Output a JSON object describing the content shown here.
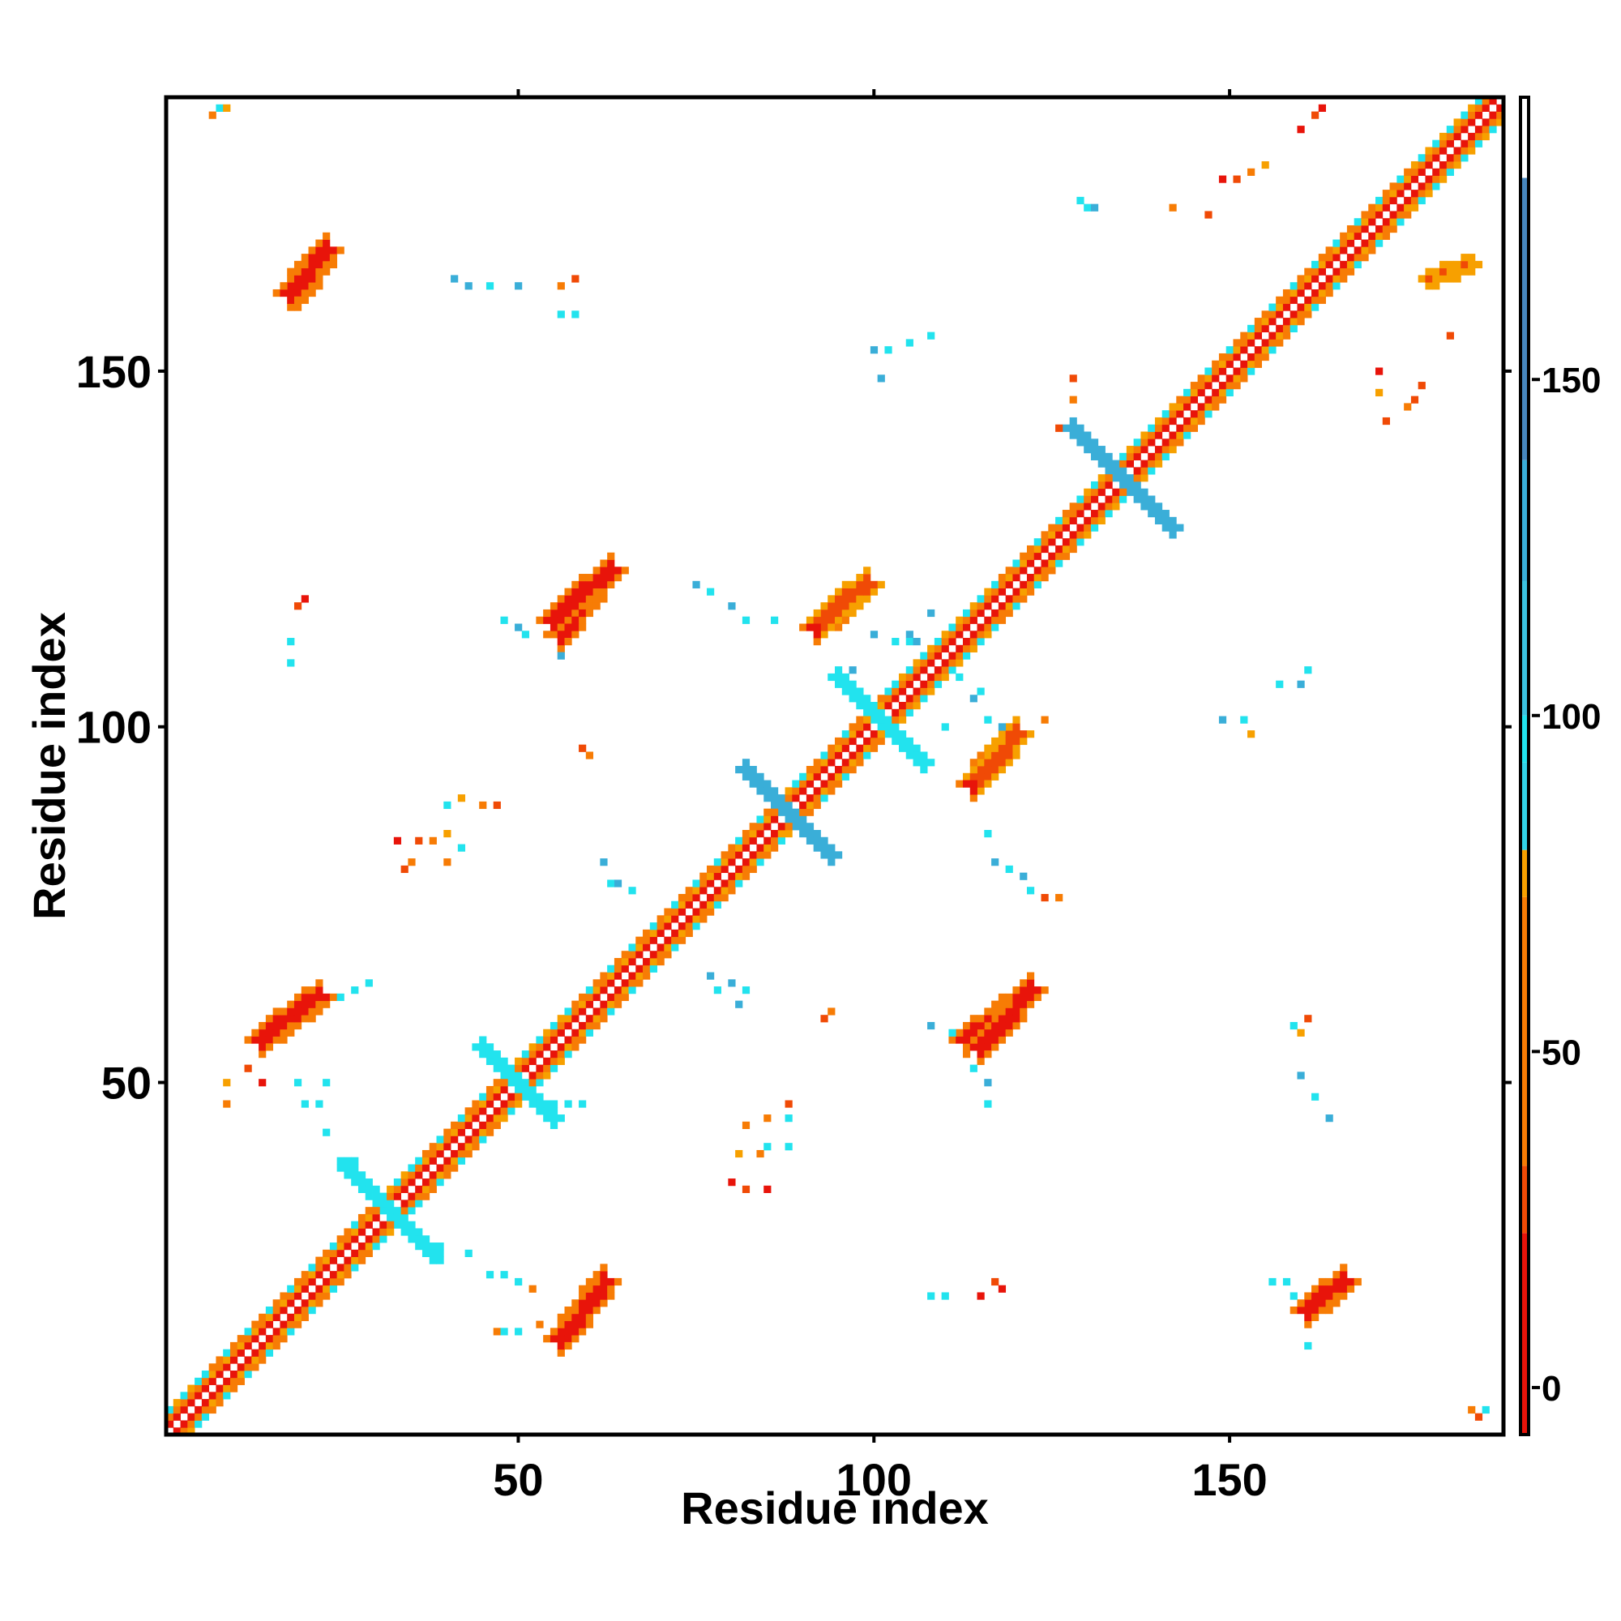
{
  "chart_data": {
    "type": "heatmap",
    "title": "",
    "xlabel": "Residue index",
    "ylabel": "Residue index",
    "xlim": [
      1,
      188
    ],
    "ylim": [
      1,
      188
    ],
    "x_ticks": [
      50,
      100,
      150
    ],
    "y_ticks": [
      50,
      100,
      150
    ],
    "grid": false,
    "legend": "colorbar-right",
    "colorbar": {
      "range": [
        -7,
        192
      ],
      "ticks": [
        0,
        50,
        100,
        150
      ],
      "bands": [
        {
          "from": -7,
          "to": 23,
          "color": "#e8140a"
        },
        {
          "from": 23,
          "to": 33,
          "color": "#f04a06"
        },
        {
          "from": 33,
          "to": 73,
          "color": "#f77c05"
        },
        {
          "from": 73,
          "to": 80,
          "color": "#f7a000"
        },
        {
          "from": 80,
          "to": 93,
          "color": "#33d3e8"
        },
        {
          "from": 93,
          "to": 100,
          "color": "#22e3ee"
        },
        {
          "from": 100,
          "to": 120,
          "color": "#3cc2e0"
        },
        {
          "from": 120,
          "to": 138,
          "color": "#3aaed8"
        },
        {
          "from": 138,
          "to": 180,
          "color": "#4786bd"
        },
        {
          "from": 180,
          "to": 192,
          "color": "#ffffff"
        }
      ]
    },
    "cell_colors": [
      "#e8140a",
      "#f04a06",
      "#f77c05",
      "#f7a000",
      "#22e3ee",
      "#3aaed8"
    ],
    "diagonal": {
      "from": 1,
      "to": 188,
      "bandwidth": 3
    },
    "helix_segments": [
      [
        6,
        30
      ],
      [
        36,
        47
      ],
      [
        57,
        74
      ],
      [
        74,
        87
      ],
      [
        90,
        102
      ],
      [
        118,
        128
      ],
      [
        143,
        175
      ]
    ],
    "crossings": [
      {
        "center": [
          32,
          32
        ],
        "half": 6,
        "color": 4
      },
      {
        "center": [
          50,
          50
        ],
        "half": 5,
        "color": 4
      },
      {
        "center": [
          88,
          88
        ],
        "half": 6,
        "color": 5
      },
      {
        "center": [
          101,
          101
        ],
        "half": 6,
        "color": 4
      },
      {
        "center": [
          135,
          135
        ],
        "half": 7,
        "color": 5
      }
    ],
    "strips": [
      {
        "from": [
          56,
          14
        ],
        "to": [
          62,
          22
        ],
        "width": 2,
        "color": 0
      },
      {
        "from": [
          14,
          56
        ],
        "to": [
          22,
          62
        ],
        "width": 2,
        "color": 0
      },
      {
        "from": [
          115,
          55
        ],
        "to": [
          122,
          63
        ],
        "width": 2,
        "color": 0
      },
      {
        "from": [
          55,
          115
        ],
        "to": [
          63,
          122
        ],
        "width": 2,
        "color": 0
      },
      {
        "from": [
          115,
          93
        ],
        "to": [
          120,
          99
        ],
        "width": 2,
        "color": 1
      },
      {
        "from": [
          93,
          115
        ],
        "to": [
          99,
          120
        ],
        "width": 2,
        "color": 1
      },
      {
        "from": [
          161,
          18
        ],
        "to": [
          166,
          22
        ],
        "width": 2,
        "color": 0
      },
      {
        "from": [
          18,
          161
        ],
        "to": [
          22,
          166
        ],
        "width": 2,
        "color": 0
      },
      {
        "from": [
          56,
          113
        ],
        "to": [
          61,
          120
        ],
        "width": 2,
        "color": 0
      },
      {
        "from": [
          113,
          56
        ],
        "to": [
          120,
          61
        ],
        "width": 2,
        "color": 0
      },
      {
        "from": [
          92,
          114
        ],
        "to": [
          97,
          118
        ],
        "width": 2,
        "color": 0
      },
      {
        "from": [
          114,
          92
        ],
        "to": [
          118,
          97
        ],
        "width": 2,
        "color": 0
      },
      {
        "from": [
          19,
          161
        ],
        "to": [
          23,
          167
        ],
        "width": 2,
        "color": 0
      },
      {
        "from": [
          178,
          163
        ],
        "to": [
          184,
          165
        ],
        "width": 1,
        "color": 1
      }
    ],
    "scatter_cells": [
      [
        7,
        186,
        2
      ],
      [
        8,
        187,
        4
      ],
      [
        9,
        187,
        3
      ],
      [
        185,
        3,
        1
      ],
      [
        186,
        4,
        4
      ],
      [
        184,
        4,
        2
      ],
      [
        149,
        177,
        0
      ],
      [
        151,
        177,
        1
      ],
      [
        153,
        178,
        2
      ],
      [
        155,
        179,
        3
      ],
      [
        160,
        184,
        0
      ],
      [
        162,
        186,
        1
      ],
      [
        163,
        187,
        0
      ],
      [
        129,
        174,
        4
      ],
      [
        130,
        173,
        4
      ],
      [
        131,
        173,
        5
      ],
      [
        142,
        173,
        2
      ],
      [
        147,
        172,
        1
      ],
      [
        41,
        163,
        5
      ],
      [
        43,
        162,
        5
      ],
      [
        46,
        162,
        4
      ],
      [
        50,
        162,
        5
      ],
      [
        56,
        162,
        2
      ],
      [
        58,
        163,
        1
      ],
      [
        56,
        158,
        4
      ],
      [
        58,
        158,
        4
      ],
      [
        100,
        153,
        5
      ],
      [
        102,
        153,
        4
      ],
      [
        105,
        154,
        4
      ],
      [
        108,
        155,
        4
      ],
      [
        101,
        149,
        5
      ],
      [
        128,
        149,
        1
      ],
      [
        128,
        146,
        2
      ],
      [
        126,
        142,
        1
      ],
      [
        172,
        143,
        1
      ],
      [
        175,
        145,
        2
      ],
      [
        177,
        148,
        1
      ],
      [
        176,
        146,
        1
      ],
      [
        171,
        150,
        0
      ],
      [
        171,
        147,
        3
      ],
      [
        181,
        155,
        1
      ],
      [
        20,
        118,
        0
      ],
      [
        19,
        117,
        1
      ],
      [
        18,
        112,
        4
      ],
      [
        18,
        109,
        4
      ],
      [
        48,
        115,
        4
      ],
      [
        50,
        114,
        5
      ],
      [
        51,
        113,
        4
      ],
      [
        55,
        113,
        5
      ],
      [
        56,
        110,
        5
      ],
      [
        75,
        120,
        5
      ],
      [
        77,
        119,
        4
      ],
      [
        80,
        117,
        5
      ],
      [
        82,
        115,
        4
      ],
      [
        86,
        115,
        4
      ],
      [
        100,
        113,
        5
      ],
      [
        103,
        112,
        4
      ],
      [
        105,
        113,
        5
      ],
      [
        108,
        116,
        5
      ],
      [
        97,
        108,
        5
      ],
      [
        112,
        107,
        4
      ],
      [
        105,
        112,
        4
      ],
      [
        106,
        112,
        5
      ],
      [
        110,
        100,
        4
      ],
      [
        114,
        104,
        5
      ],
      [
        115,
        105,
        4
      ],
      [
        157,
        106,
        4
      ],
      [
        160,
        106,
        5
      ],
      [
        161,
        108,
        4
      ],
      [
        149,
        101,
        5
      ],
      [
        152,
        101,
        4
      ],
      [
        153,
        99,
        3
      ],
      [
        116,
        101,
        4
      ],
      [
        118,
        100,
        5
      ],
      [
        124,
        101,
        2
      ],
      [
        59,
        97,
        1
      ],
      [
        60,
        96,
        2
      ],
      [
        40,
        89,
        4
      ],
      [
        42,
        90,
        3
      ],
      [
        45,
        89,
        2
      ],
      [
        47,
        89,
        1
      ],
      [
        33,
        84,
        0
      ],
      [
        36,
        84,
        1
      ],
      [
        38,
        84,
        2
      ],
      [
        40,
        85,
        3
      ],
      [
        34,
        80,
        1
      ],
      [
        35,
        81,
        2
      ],
      [
        40,
        81,
        2
      ],
      [
        42,
        83,
        4
      ],
      [
        62,
        81,
        5
      ],
      [
        63,
        78,
        4
      ],
      [
        64,
        78,
        5
      ],
      [
        66,
        77,
        4
      ],
      [
        116,
        85,
        4
      ],
      [
        117,
        81,
        5
      ],
      [
        119,
        80,
        4
      ],
      [
        121,
        79,
        5
      ],
      [
        122,
        77,
        4
      ],
      [
        124,
        76,
        1
      ],
      [
        126,
        76,
        2
      ],
      [
        77,
        65,
        5
      ],
      [
        78,
        63,
        4
      ],
      [
        80,
        64,
        5
      ],
      [
        82,
        63,
        4
      ],
      [
        81,
        61,
        5
      ],
      [
        93,
        59,
        1
      ],
      [
        94,
        60,
        2
      ],
      [
        108,
        58,
        5
      ],
      [
        111,
        57,
        4
      ],
      [
        113,
        56,
        5
      ],
      [
        114,
        52,
        4
      ],
      [
        116,
        50,
        5
      ],
      [
        116,
        47,
        4
      ],
      [
        159,
        58,
        4
      ],
      [
        160,
        57,
        3
      ],
      [
        161,
        59,
        1
      ],
      [
        160,
        51,
        5
      ],
      [
        162,
        48,
        4
      ],
      [
        164,
        45,
        5
      ],
      [
        25,
        62,
        4
      ],
      [
        27,
        63,
        4
      ],
      [
        29,
        64,
        4
      ],
      [
        9,
        50,
        3
      ],
      [
        9,
        47,
        2
      ],
      [
        12,
        52,
        1
      ],
      [
        14,
        50,
        0
      ],
      [
        19,
        50,
        4
      ],
      [
        20,
        47,
        4
      ],
      [
        22,
        47,
        4
      ],
      [
        23,
        50,
        4
      ],
      [
        23,
        43,
        4
      ],
      [
        25,
        39,
        4
      ],
      [
        27,
        39,
        4
      ],
      [
        55,
        47,
        4
      ],
      [
        57,
        47,
        4
      ],
      [
        59,
        47,
        4
      ],
      [
        82,
        44,
        2
      ],
      [
        85,
        45,
        2
      ],
      [
        88,
        45,
        4
      ],
      [
        88,
        47,
        1
      ],
      [
        81,
        40,
        3
      ],
      [
        84,
        40,
        2
      ],
      [
        85,
        41,
        4
      ],
      [
        88,
        41,
        4
      ],
      [
        80,
        36,
        0
      ],
      [
        82,
        35,
        1
      ],
      [
        85,
        35,
        0
      ],
      [
        39,
        27,
        4
      ],
      [
        39,
        25,
        4
      ],
      [
        43,
        26,
        4
      ],
      [
        46,
        23,
        4
      ],
      [
        48,
        23,
        4
      ],
      [
        50,
        22,
        4
      ],
      [
        52,
        21,
        2
      ],
      [
        47,
        15,
        2
      ],
      [
        48,
        15,
        4
      ],
      [
        50,
        15,
        4
      ],
      [
        53,
        16,
        2
      ],
      [
        108,
        20,
        4
      ],
      [
        110,
        20,
        4
      ],
      [
        115,
        20,
        0
      ],
      [
        117,
        22,
        1
      ],
      [
        118,
        21,
        0
      ],
      [
        156,
        22,
        4
      ],
      [
        158,
        22,
        4
      ],
      [
        159,
        20,
        4
      ],
      [
        160,
        18,
        4
      ],
      [
        161,
        16,
        5
      ],
      [
        161,
        13,
        4
      ]
    ]
  }
}
